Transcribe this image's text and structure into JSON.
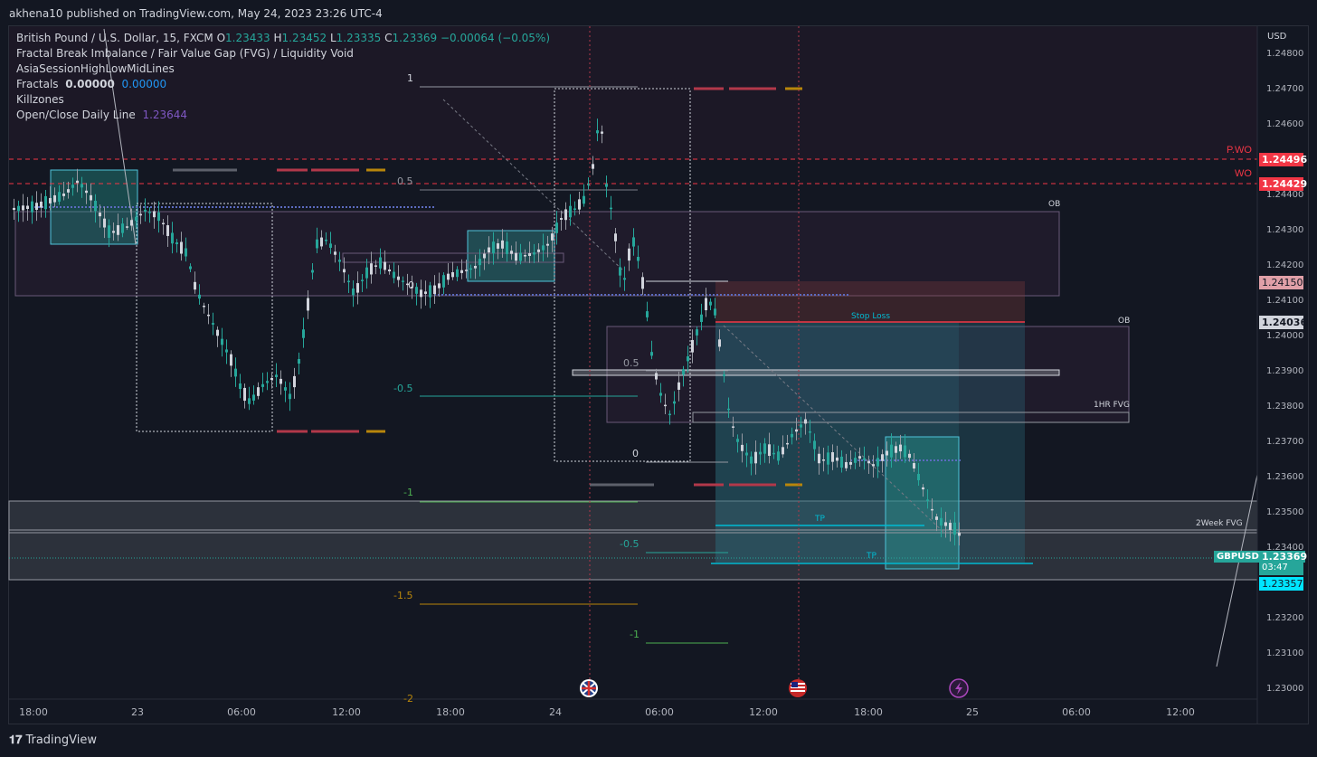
{
  "publisher_line": "akhena10 published on TradingView.com, May 24, 2023 23:26 UTC-4",
  "legend": {
    "symbol": "British Pound / U.S. Dollar, 15, FXCM",
    "o_label": "O",
    "o": "1.23433",
    "h_label": "H",
    "h": "1.23452",
    "l_label": "L",
    "l": "1.23335",
    "c_label": "C",
    "c": "1.23369",
    "change": "−0.00064 (−0.05%)",
    "ind1": "Fractal Break Imbalance / Fair Value Gap (FVG) / Liquidity Void",
    "ind2": "AsiaSessionHighLowMidLines",
    "ind3_label": "Fractals",
    "ind3_v1": "0.00000",
    "ind3_v2": "0.00000",
    "ind4": "Killzones",
    "ind5_label": "Open/Close Daily Line",
    "ind5_v": "1.23644"
  },
  "price_axis": {
    "currency": "USD",
    "ticks": [
      "1.24800",
      "1.24700",
      "1.24600",
      "1.24500",
      "1.24400",
      "1.24300",
      "1.24200",
      "1.24100",
      "1.24000",
      "1.23900",
      "1.23800",
      "1.23700",
      "1.23600",
      "1.23500",
      "1.23400",
      "1.23300",
      "1.23200",
      "1.23100",
      "1.23000"
    ]
  },
  "time_axis": [
    "18:00",
    "23",
    "06:00",
    "12:00",
    "18:00",
    "24",
    "06:00",
    "12:00",
    "18:00",
    "25",
    "06:00",
    "12:00"
  ],
  "tags": {
    "pwo_label": "P.WO",
    "pwo_price": "1.24496",
    "wo_label": "WO",
    "wo_price": "1.24429",
    "tag_24150": "1.24150",
    "tag_24036": "1.24036",
    "symbol_tag": "GBPUSD",
    "last_price": "1.23369",
    "countdown": "03:47",
    "tag_23357": "1.23357"
  },
  "annotations": {
    "ob1": "OB",
    "ob2": "OB",
    "hr_fvg": "1HR FVG",
    "week_fvg": "2Week FVG",
    "stop_loss": "Stop Loss",
    "tp1": "TP",
    "tp2": "TP",
    "fib_a_1": "1",
    "fib_a_05": "0.5",
    "fib_a_0": "0",
    "fib_a_m05": "-0.5",
    "fib_a_m1": "-1",
    "fib_a_m15": "-1.5",
    "fib_a_m2": "-2",
    "fib_b_05": "0.5",
    "fib_b_0": "0",
    "fib_b_m05": "-0.5",
    "fib_b_m1": "-1"
  },
  "colors": {
    "bg": "#131722",
    "up": "#26a69a",
    "down": "#787b86",
    "pwo": "#f23645",
    "teal": "#00bcd4"
  },
  "icons": [
    "uk-flag-icon",
    "us-flag-icon",
    "lightning-icon"
  ],
  "brand": "TradingView"
}
